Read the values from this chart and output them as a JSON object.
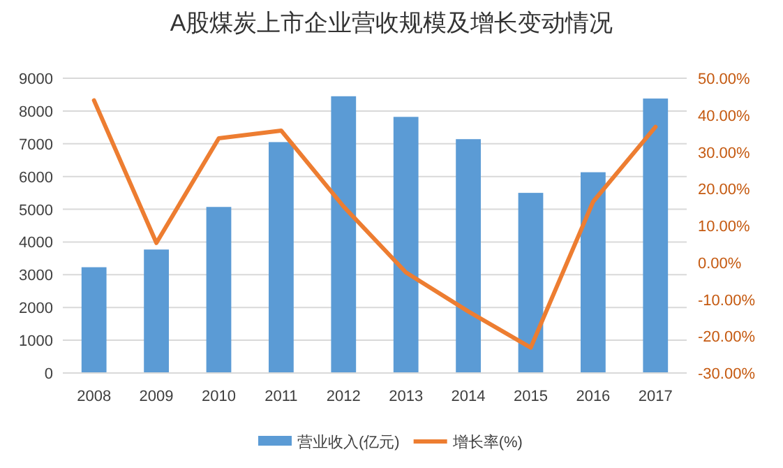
{
  "chart_data": {
    "type": "bar",
    "title": "A股煤炭上市企业营收规模及增长变动情况",
    "categories": [
      "2008",
      "2009",
      "2010",
      "2011",
      "2012",
      "2013",
      "2014",
      "2015",
      "2016",
      "2017"
    ],
    "series": [
      {
        "name": "营业收入(亿元)",
        "color": "#5b9bd5",
        "values": [
          3230,
          3770,
          5070,
          7050,
          8450,
          7820,
          7140,
          5500,
          6130,
          8380
        ]
      },
      {
        "name": "增长率(%)",
        "type": "line",
        "axis": "y2",
        "color": "#ed7d31",
        "values": [
          44.0,
          5.3,
          33.7,
          35.8,
          15.2,
          -2.7,
          -13.3,
          -23.1,
          16.5,
          36.8
        ]
      }
    ],
    "ylim": [
      0,
      9000
    ],
    "yticks": [
      0,
      1000,
      2000,
      3000,
      4000,
      5000,
      6000,
      7000,
      8000,
      9000
    ],
    "y2lim": [
      -30,
      50
    ],
    "y2ticks": [
      {
        "value": -30,
        "label": "-30.00%"
      },
      {
        "value": -20,
        "label": "-20.00%"
      },
      {
        "value": -10,
        "label": "-10.00%"
      },
      {
        "value": 0,
        "label": "0.00%"
      },
      {
        "value": 10,
        "label": "10.00%"
      },
      {
        "value": 20,
        "label": "20.00%"
      },
      {
        "value": 30,
        "label": "30.00%"
      },
      {
        "value": 40,
        "label": "40.00%"
      },
      {
        "value": 50,
        "label": "50.00%"
      }
    ],
    "grid": "y",
    "legend": "bottom"
  }
}
